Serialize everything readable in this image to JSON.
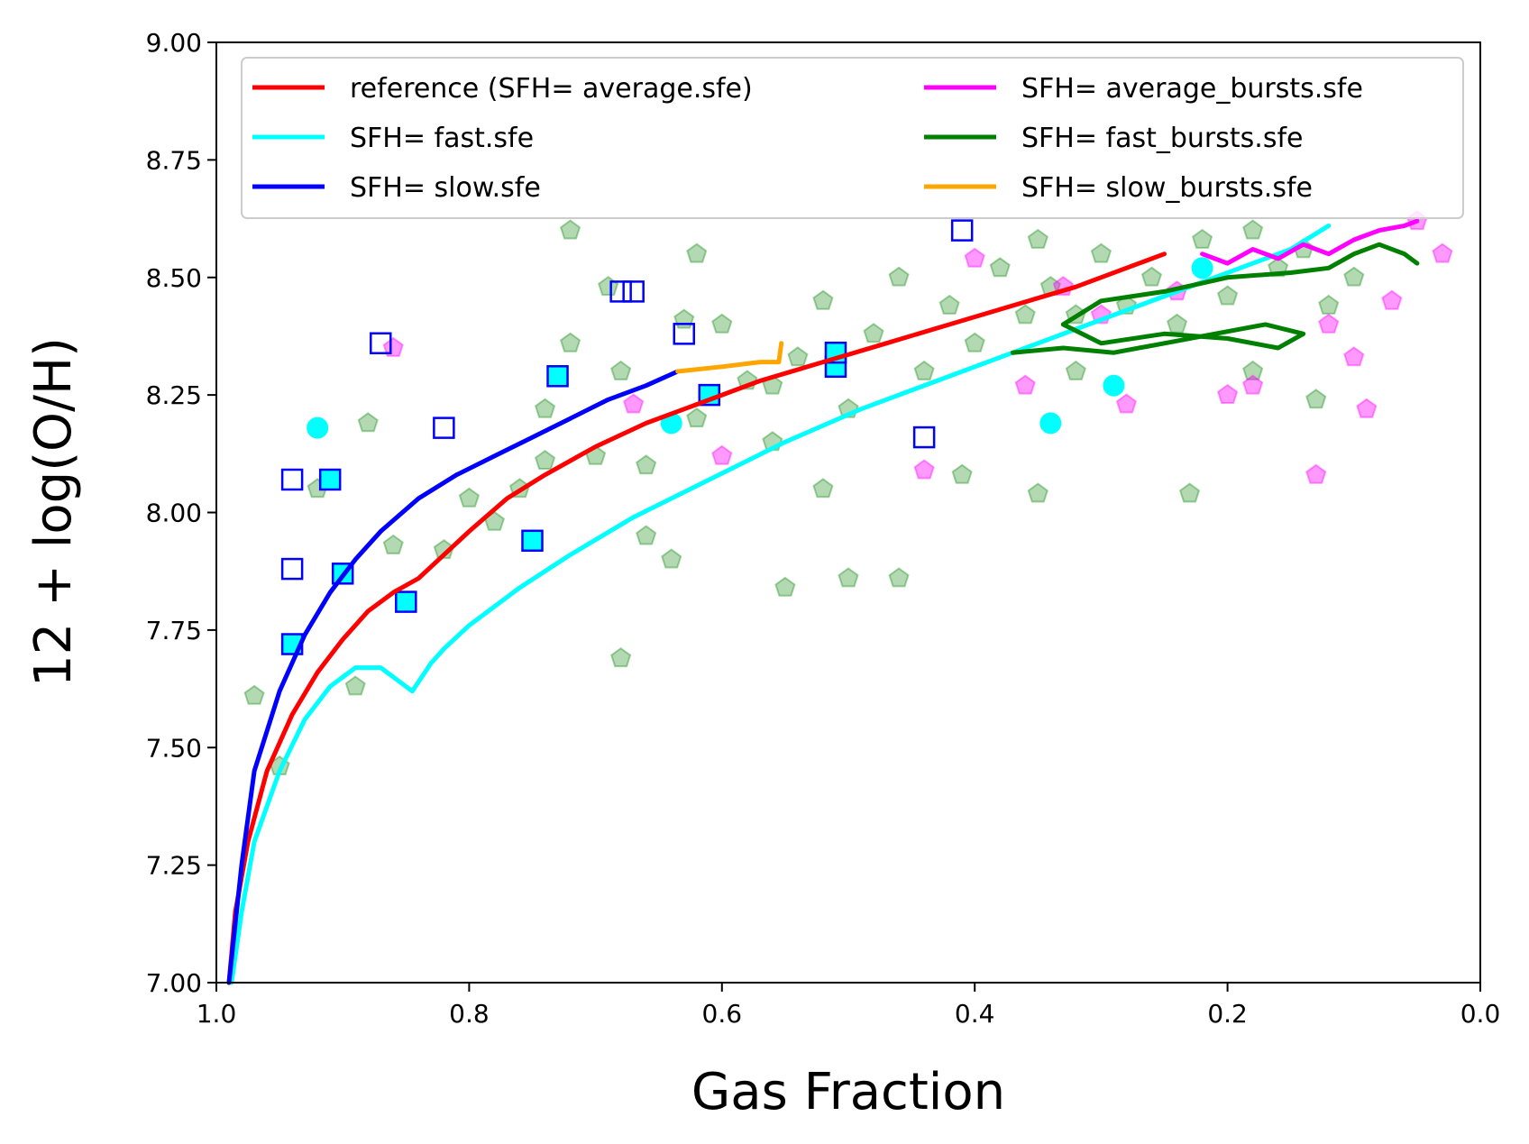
{
  "chart_data": {
    "type": "line",
    "title": "",
    "xlabel": "Gas Fraction",
    "ylabel": "12 + log(O/H)",
    "xlim": [
      1.0,
      0.0
    ],
    "ylim": [
      7.0,
      9.0
    ],
    "xticks": [
      "1.0",
      "0.8",
      "0.6",
      "0.4",
      "0.2",
      "0.0"
    ],
    "xtick_values": [
      1.0,
      0.8,
      0.6,
      0.4,
      0.2,
      0.0
    ],
    "yticks": [
      "7.00",
      "7.25",
      "7.50",
      "7.75",
      "8.00",
      "8.25",
      "8.50",
      "8.75",
      "9.00"
    ],
    "ytick_values": [
      7.0,
      7.25,
      7.5,
      7.75,
      8.0,
      8.25,
      8.5,
      8.75,
      9.0
    ],
    "legend_placement": "top",
    "series": [
      {
        "name": "reference (SFH= average.sfe)",
        "color": "#ff0000",
        "x": [
          0.99,
          0.985,
          0.975,
          0.96,
          0.94,
          0.92,
          0.9,
          0.88,
          0.86,
          0.84,
          0.82,
          0.8,
          0.77,
          0.74,
          0.7,
          0.66,
          0.62,
          0.57,
          0.52,
          0.47,
          0.42,
          0.37,
          0.32,
          0.28,
          0.25
        ],
        "y": [
          7.0,
          7.15,
          7.3,
          7.45,
          7.57,
          7.66,
          7.73,
          7.79,
          7.83,
          7.86,
          7.91,
          7.96,
          8.03,
          8.08,
          8.14,
          8.19,
          8.23,
          8.28,
          8.32,
          8.36,
          8.4,
          8.44,
          8.48,
          8.52,
          8.55
        ]
      },
      {
        "name": "SFH= fast.sfe",
        "color": "#00ffff",
        "x": [
          0.988,
          0.98,
          0.97,
          0.95,
          0.93,
          0.91,
          0.89,
          0.87,
          0.86,
          0.85,
          0.845,
          0.84,
          0.83,
          0.82,
          0.8,
          0.76,
          0.72,
          0.67,
          0.61,
          0.55,
          0.49,
          0.43,
          0.37,
          0.31,
          0.25,
          0.19,
          0.15,
          0.12
        ],
        "y": [
          7.0,
          7.15,
          7.3,
          7.45,
          7.56,
          7.63,
          7.67,
          7.67,
          7.65,
          7.63,
          7.62,
          7.64,
          7.68,
          7.71,
          7.76,
          7.84,
          7.91,
          7.99,
          8.07,
          8.15,
          8.22,
          8.28,
          8.34,
          8.4,
          8.46,
          8.52,
          8.56,
          8.61
        ]
      },
      {
        "name": "SFH= slow.sfe",
        "color": "#0000ff",
        "x": [
          0.99,
          0.98,
          0.97,
          0.95,
          0.93,
          0.91,
          0.89,
          0.87,
          0.84,
          0.81,
          0.78,
          0.75,
          0.72,
          0.69,
          0.66,
          0.635
        ],
        "y": [
          7.0,
          7.25,
          7.45,
          7.62,
          7.74,
          7.83,
          7.9,
          7.96,
          8.03,
          8.08,
          8.12,
          8.16,
          8.2,
          8.24,
          8.27,
          8.3
        ]
      },
      {
        "name": "SFH= average_bursts.sfe",
        "color": "#ff00ff",
        "x": [
          0.22,
          0.2,
          0.18,
          0.16,
          0.14,
          0.12,
          0.1,
          0.08,
          0.06,
          0.05
        ],
        "y": [
          8.55,
          8.53,
          8.56,
          8.54,
          8.57,
          8.55,
          8.58,
          8.6,
          8.61,
          8.62
        ]
      },
      {
        "name": "SFH= fast_bursts.sfe",
        "color": "#008000",
        "x": [
          0.37,
          0.33,
          0.29,
          0.25,
          0.21,
          0.17,
          0.14,
          0.16,
          0.2,
          0.25,
          0.3,
          0.33,
          0.3,
          0.25,
          0.2,
          0.15,
          0.12,
          0.1,
          0.08,
          0.06,
          0.05
        ],
        "y": [
          8.34,
          8.35,
          8.34,
          8.36,
          8.38,
          8.4,
          8.38,
          8.35,
          8.37,
          8.38,
          8.36,
          8.4,
          8.45,
          8.47,
          8.5,
          8.51,
          8.52,
          8.55,
          8.57,
          8.55,
          8.53
        ]
      },
      {
        "name": "SFH= slow_bursts.sfe",
        "color": "#ffa500",
        "x": [
          0.635,
          0.6,
          0.57,
          0.555,
          0.553
        ],
        "y": [
          8.3,
          8.31,
          8.32,
          8.32,
          8.36
        ]
      }
    ],
    "markers": {
      "green_pentagons": [
        [
          0.97,
          7.61
        ],
        [
          0.95,
          7.46
        ],
        [
          0.92,
          8.05
        ],
        [
          0.88,
          8.19
        ],
        [
          0.86,
          7.93
        ],
        [
          0.82,
          7.92
        ],
        [
          0.78,
          7.98
        ],
        [
          0.76,
          8.05
        ],
        [
          0.74,
          8.22
        ],
        [
          0.72,
          8.36
        ],
        [
          0.7,
          8.12
        ],
        [
          0.68,
          8.3
        ],
        [
          0.66,
          8.1
        ],
        [
          0.64,
          7.9
        ],
        [
          0.62,
          8.2
        ],
        [
          0.6,
          8.4
        ],
        [
          0.58,
          8.28
        ],
        [
          0.56,
          8.15
        ],
        [
          0.54,
          8.33
        ],
        [
          0.52,
          8.45
        ],
        [
          0.5,
          8.22
        ],
        [
          0.48,
          8.38
        ],
        [
          0.46,
          8.5
        ],
        [
          0.44,
          8.3
        ],
        [
          0.42,
          8.44
        ],
        [
          0.4,
          8.36
        ],
        [
          0.38,
          8.52
        ],
        [
          0.36,
          8.42
        ],
        [
          0.34,
          8.48
        ],
        [
          0.32,
          8.3
        ],
        [
          0.3,
          8.55
        ],
        [
          0.28,
          8.44
        ],
        [
          0.26,
          8.5
        ],
        [
          0.24,
          8.4
        ],
        [
          0.22,
          8.58
        ],
        [
          0.2,
          8.46
        ],
        [
          0.18,
          8.6
        ],
        [
          0.16,
          8.52
        ],
        [
          0.14,
          8.56
        ],
        [
          0.12,
          8.44
        ],
        [
          0.1,
          8.5
        ],
        [
          0.72,
          8.6
        ],
        [
          0.69,
          8.48
        ],
        [
          0.66,
          7.95
        ],
        [
          0.62,
          8.55
        ],
        [
          0.55,
          7.84
        ],
        [
          0.5,
          7.86
        ],
        [
          0.46,
          7.86
        ],
        [
          0.41,
          8.08
        ],
        [
          0.35,
          8.04
        ],
        [
          0.23,
          8.04
        ],
        [
          0.68,
          7.69
        ],
        [
          0.89,
          7.63
        ],
        [
          0.74,
          8.11
        ],
        [
          0.8,
          8.03
        ],
        [
          0.56,
          8.27
        ],
        [
          0.63,
          8.41
        ],
        [
          0.52,
          8.05
        ],
        [
          0.35,
          8.58
        ],
        [
          0.32,
          8.42
        ],
        [
          0.18,
          8.3
        ],
        [
          0.13,
          8.24
        ]
      ],
      "magenta_pentagons": [
        [
          0.86,
          8.35
        ],
        [
          0.67,
          8.23
        ],
        [
          0.6,
          8.12
        ],
        [
          0.44,
          8.09
        ],
        [
          0.33,
          8.48
        ],
        [
          0.28,
          8.23
        ],
        [
          0.2,
          8.25
        ],
        [
          0.13,
          8.08
        ],
        [
          0.1,
          8.33
        ],
        [
          0.09,
          8.22
        ],
        [
          0.07,
          8.45
        ],
        [
          0.03,
          8.55
        ],
        [
          0.05,
          8.62
        ],
        [
          0.12,
          8.4
        ],
        [
          0.18,
          8.27
        ],
        [
          0.24,
          8.47
        ],
        [
          0.4,
          8.54
        ],
        [
          0.36,
          8.27
        ],
        [
          0.3,
          8.42
        ]
      ],
      "cyan_circles": [
        [
          0.92,
          8.18
        ],
        [
          0.64,
          8.19
        ],
        [
          0.34,
          8.19
        ],
        [
          0.29,
          8.27
        ],
        [
          0.22,
          8.52
        ]
      ],
      "blue_squares_open": [
        [
          0.94,
          8.07
        ],
        [
          0.94,
          7.88
        ],
        [
          0.87,
          8.36
        ],
        [
          0.82,
          8.18
        ],
        [
          0.68,
          8.47
        ],
        [
          0.67,
          8.47
        ],
        [
          0.63,
          8.38
        ],
        [
          0.44,
          8.16
        ],
        [
          0.41,
          8.6
        ]
      ],
      "blue_squares_filled": [
        [
          0.94,
          7.72
        ],
        [
          0.91,
          8.07
        ],
        [
          0.9,
          7.87
        ],
        [
          0.85,
          7.81
        ],
        [
          0.75,
          7.94
        ],
        [
          0.73,
          8.29
        ],
        [
          0.61,
          8.25
        ],
        [
          0.51,
          8.31
        ],
        [
          0.51,
          8.34
        ]
      ]
    }
  },
  "legend": {
    "items": [
      {
        "label": "reference (SFH= average.sfe)",
        "color": "#ff0000"
      },
      {
        "label": "SFH= fast.sfe",
        "color": "#00ffff"
      },
      {
        "label": "SFH= slow.sfe",
        "color": "#0000ff"
      },
      {
        "label": "SFH= average_bursts.sfe",
        "color": "#ff00ff"
      },
      {
        "label": "SFH= fast_bursts.sfe",
        "color": "#008000"
      },
      {
        "label": "SFH= slow_bursts.sfe",
        "color": "#ffa500"
      }
    ]
  }
}
